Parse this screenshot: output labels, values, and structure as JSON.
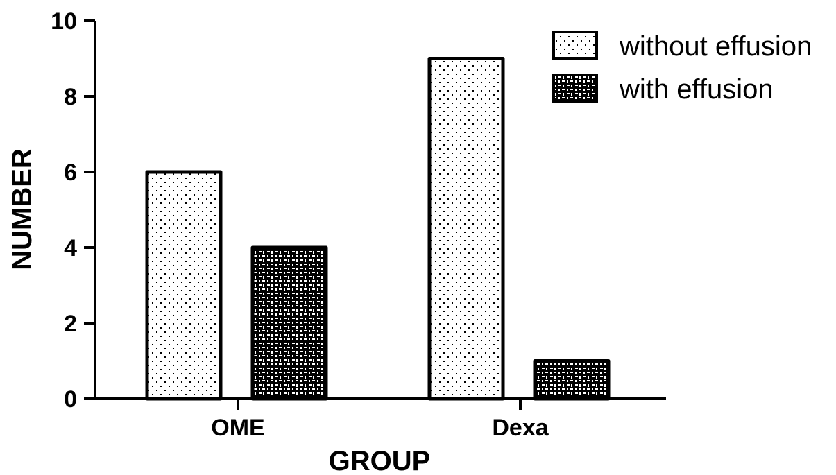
{
  "chart_data": {
    "type": "bar",
    "title": "",
    "xlabel": "GROUP",
    "ylabel": "NUMBER",
    "categories": [
      "OME",
      "Dexa"
    ],
    "series": [
      {
        "name": "without effusion",
        "values": [
          6,
          9
        ],
        "pattern": "dots-on-white"
      },
      {
        "name": "with effusion",
        "values": [
          4,
          1
        ],
        "pattern": "white-dashes-on-black"
      }
    ],
    "ylim": [
      0,
      10
    ],
    "yticks": [
      0,
      2,
      4,
      6,
      8,
      10
    ],
    "grid": false,
    "legend_position": "top-right",
    "colors": {
      "bar_outline": "#000000",
      "background": "#ffffff"
    }
  }
}
